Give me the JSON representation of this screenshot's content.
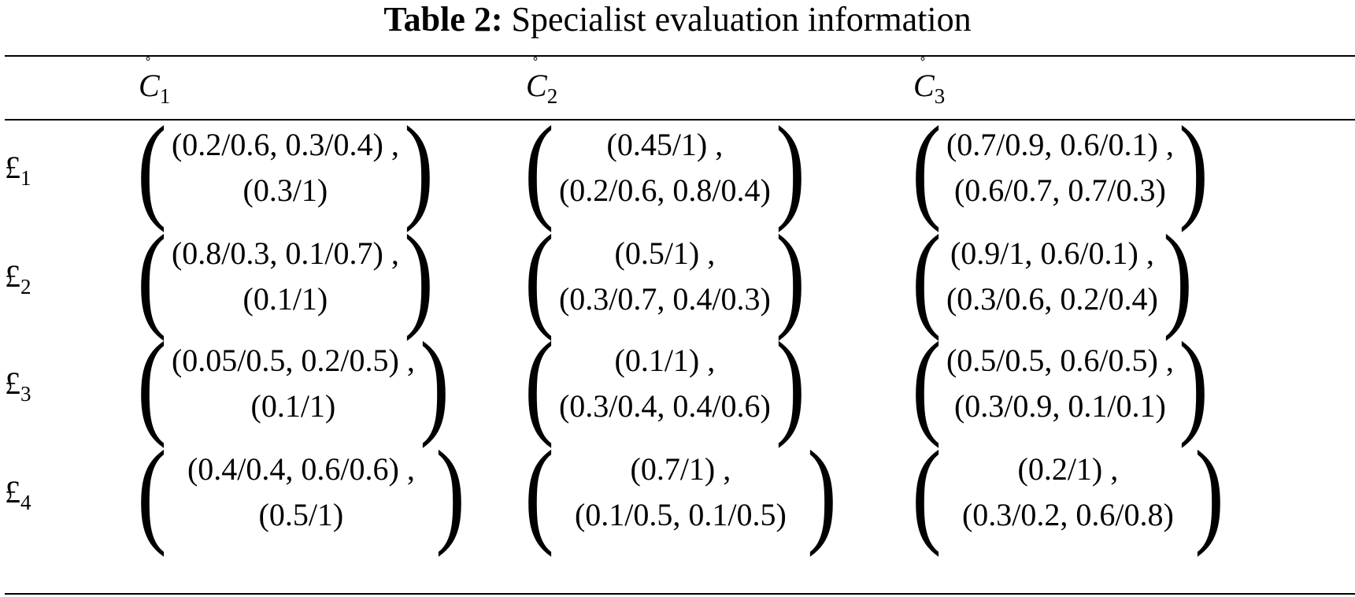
{
  "caption": {
    "label": "Table 2:",
    "text": "Specialist evaluation information"
  },
  "columns": [
    {
      "symbol": "C",
      "subscript": "1",
      "accent": "˚"
    },
    {
      "symbol": "C",
      "subscript": "2",
      "accent": "˚"
    },
    {
      "symbol": "C",
      "subscript": "3",
      "accent": "˚"
    }
  ],
  "rows": [
    {
      "symbol": "£",
      "subscript": "1",
      "cells": [
        {
          "line1": "(0.2/0.6, 0.3/0.4) ,",
          "line2": "(0.3/1)"
        },
        {
          "line1": "(0.45/1) ,",
          "line2": "(0.2/0.6, 0.8/0.4)"
        },
        {
          "line1": "(0.7/0.9, 0.6/0.1) ,",
          "line2": "(0.6/0.7, 0.7/0.3)"
        }
      ]
    },
    {
      "symbol": "£",
      "subscript": "2",
      "cells": [
        {
          "line1": "(0.8/0.3, 0.1/0.7) ,",
          "line2": "(0.1/1)"
        },
        {
          "line1": "(0.5/1) ,",
          "line2": "(0.3/0.7, 0.4/0.3)"
        },
        {
          "line1": "(0.9/1, 0.6/0.1) ,",
          "line2": "(0.3/0.6, 0.2/0.4)"
        }
      ]
    },
    {
      "symbol": "£",
      "subscript": "3",
      "cells": [
        {
          "line1": "(0.05/0.5, 0.2/0.5) ,",
          "line2": "(0.1/1)"
        },
        {
          "line1": "(0.1/1) ,",
          "line2": "(0.3/0.4, 0.4/0.6)"
        },
        {
          "line1": "(0.5/0.5, 0.6/0.5) ,",
          "line2": "(0.3/0.9, 0.1/0.1)"
        }
      ]
    },
    {
      "symbol": "£",
      "subscript": "4",
      "cells": [
        {
          "line1": "(0.4/0.4, 0.6/0.6) ,",
          "line2": "(0.5/1)"
        },
        {
          "line1": "(0.7/1) ,",
          "line2": "(0.1/0.5, 0.1/0.5)"
        },
        {
          "line1": "(0.2/1) ,",
          "line2": "(0.3/0.2, 0.6/0.8)"
        }
      ]
    }
  ]
}
